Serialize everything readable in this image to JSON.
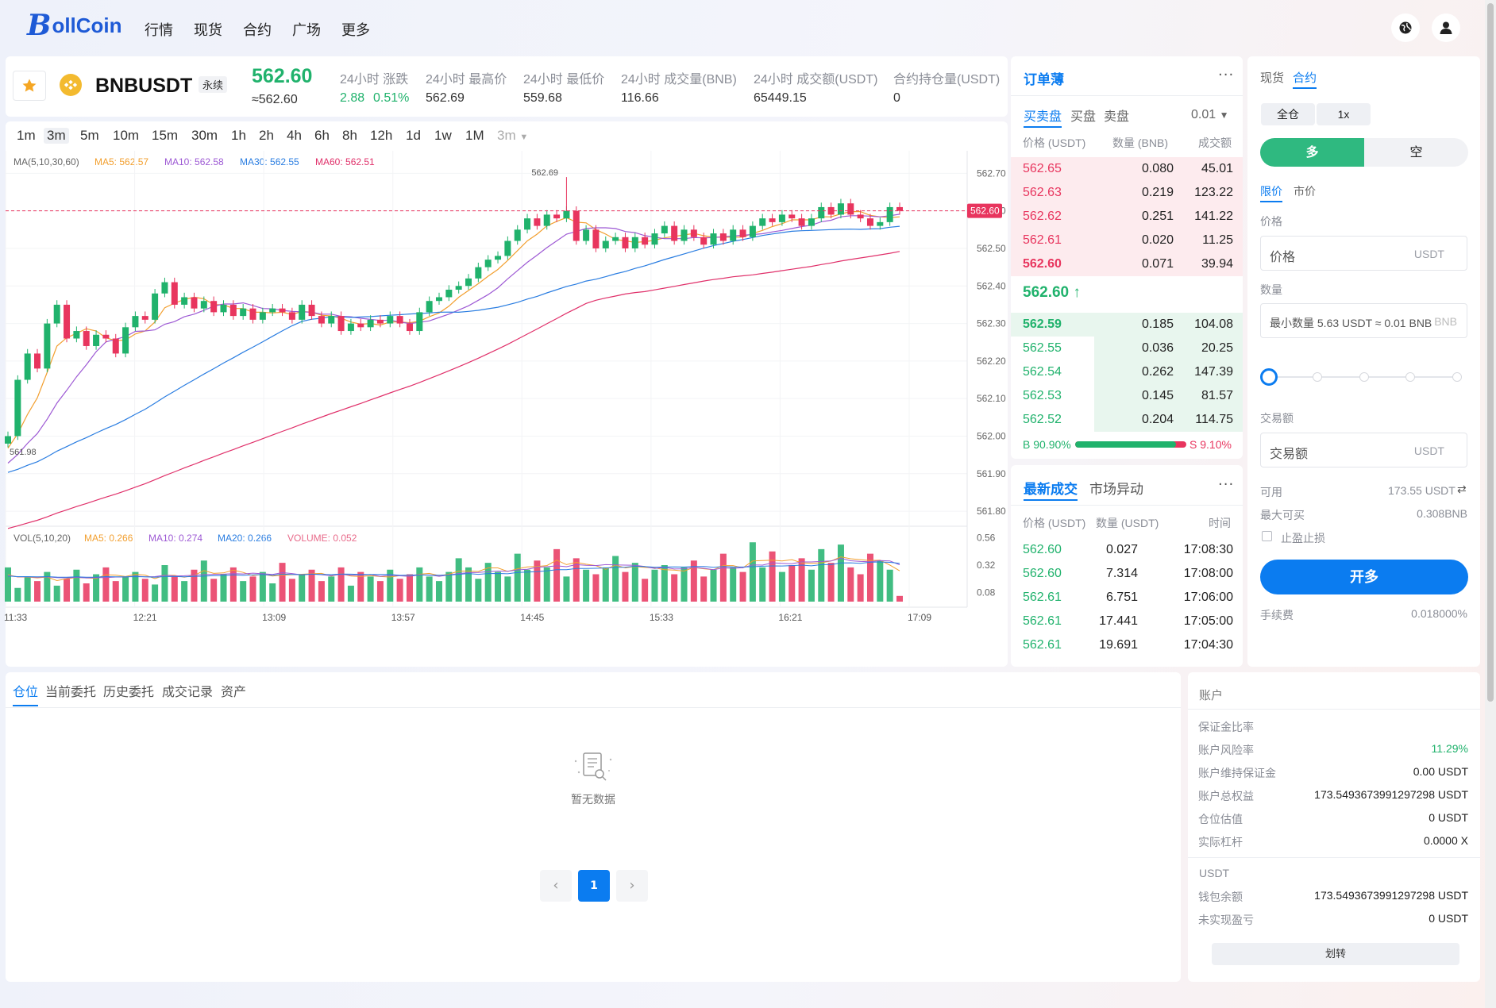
{
  "app": {
    "logo_initial": "B",
    "logo_rest": "ollCoin"
  },
  "nav": {
    "items": [
      "行情",
      "现货",
      "合约",
      "广场",
      "更多"
    ],
    "globe_icon": "globe-icon",
    "user_icon": "user-icon"
  },
  "ticker": {
    "symbol": "BNBUSDT",
    "badge": "永续",
    "last_price": "562.60",
    "last_price_approx": "≈562.60",
    "stats": [
      {
        "label": "24小时 涨跌",
        "value": "2.88",
        "value2": "0.51%"
      },
      {
        "label": "24小时 最高价",
        "value": "562.69"
      },
      {
        "label": "24小时 最低价",
        "value": "559.68"
      },
      {
        "label": "24小时 成交量(BNB)",
        "value": "116.66"
      },
      {
        "label": "24小时 成交额(USDT)",
        "value": "65449.15"
      },
      {
        "label": "合约持仓量(USDT)",
        "value": "0"
      }
    ]
  },
  "chart_toolbar": {
    "intervals": [
      "1m",
      "3m",
      "5m",
      "10m",
      "15m",
      "30m",
      "1h",
      "2h",
      "4h",
      "6h",
      "8h",
      "12h",
      "1d",
      "1w",
      "1M"
    ],
    "active": "3m",
    "dropdown": "3m"
  },
  "chart_data": {
    "type": "candlestick",
    "price_legend": {
      "label": "MA(5,10,30,60)",
      "ma5": "MA5: 562.57",
      "ma10": "MA10: 562.58",
      "ma30": "MA30: 562.55",
      "ma60": "MA60: 562.51"
    },
    "vol_legend": {
      "label": "VOL(5,10,20)",
      "ma5": "MA5: 0.266",
      "ma10": "MA10: 0.274",
      "ma20": "MA20: 0.266",
      "volume": "VOLUME: 0.052"
    },
    "y_ticks": [
      "562.70",
      "562.60",
      "562.50",
      "562.40",
      "562.30",
      "562.20",
      "562.10",
      "562.00",
      "561.90",
      "561.80"
    ],
    "vol_ticks": [
      "0.56",
      "0.32",
      "0.08"
    ],
    "x_ticks": [
      "11:33",
      "12:21",
      "13:09",
      "13:57",
      "14:45",
      "15:33",
      "16:21",
      "17:09"
    ],
    "current_price": "562.60",
    "high_marker": "562.69",
    "low_marker": "561.98",
    "ylim": [
      561.76,
      562.76
    ],
    "current_price_value": 562.6,
    "candles_close": [
      562.0,
      562.15,
      562.22,
      562.18,
      562.3,
      562.35,
      562.26,
      562.28,
      562.24,
      562.27,
      562.26,
      562.22,
      562.29,
      562.32,
      562.31,
      562.38,
      562.41,
      562.35,
      562.37,
      562.34,
      562.36,
      562.33,
      562.35,
      562.32,
      562.34,
      562.31,
      562.33,
      562.34,
      562.33,
      562.31,
      562.35,
      562.32,
      562.3,
      562.32,
      562.28,
      562.3,
      562.29,
      562.31,
      562.3,
      562.32,
      562.3,
      562.28,
      562.33,
      562.36,
      562.37,
      562.39,
      562.4,
      562.42,
      562.45,
      562.47,
      562.48,
      562.52,
      562.55,
      562.58,
      562.56,
      562.59,
      562.58,
      562.6,
      562.52,
      562.55,
      562.5,
      562.52,
      562.53,
      562.5,
      562.53,
      562.51,
      562.54,
      562.56,
      562.52,
      562.55,
      562.53,
      562.51,
      562.54,
      562.52,
      562.55,
      562.53,
      562.56,
      562.58,
      562.57,
      562.59,
      562.58,
      562.56,
      562.58,
      562.61,
      562.59,
      562.62,
      562.59,
      562.58,
      562.56,
      562.57,
      562.61,
      562.6
    ],
    "volumes": [
      0.3,
      0.12,
      0.22,
      0.18,
      0.26,
      0.14,
      0.2,
      0.28,
      0.16,
      0.24,
      0.3,
      0.18,
      0.22,
      0.26,
      0.2,
      0.15,
      0.32,
      0.22,
      0.18,
      0.28,
      0.36,
      0.2,
      0.24,
      0.3,
      0.18,
      0.22,
      0.26,
      0.16,
      0.34,
      0.2,
      0.24,
      0.28,
      0.18,
      0.22,
      0.3,
      0.14,
      0.26,
      0.22,
      0.18,
      0.28,
      0.2,
      0.24,
      0.3,
      0.22,
      0.18,
      0.26,
      0.38,
      0.3,
      0.2,
      0.34,
      0.26,
      0.22,
      0.42,
      0.28,
      0.36,
      0.3,
      0.46,
      0.22,
      0.38,
      0.28,
      0.24,
      0.3,
      0.4,
      0.26,
      0.34,
      0.2,
      0.28,
      0.32,
      0.24,
      0.3,
      0.36,
      0.22,
      0.28,
      0.42,
      0.3,
      0.26,
      0.52,
      0.3,
      0.44,
      0.26,
      0.32,
      0.38,
      0.28,
      0.46,
      0.34,
      0.5,
      0.3,
      0.24,
      0.42,
      0.36,
      0.28,
      0.05
    ]
  },
  "orderbook": {
    "title": "订单薄",
    "tabs": [
      "买卖盘",
      "买盘",
      "卖盘"
    ],
    "precision": "0.01",
    "headers": [
      "价格 (USDT)",
      "数量 (BNB)",
      "成交额"
    ],
    "asks": [
      {
        "price": "562.65",
        "qty": "0.080",
        "total": "45.01",
        "depth": 1.0
      },
      {
        "price": "562.63",
        "qty": "0.219",
        "total": "123.22",
        "depth": 1.0
      },
      {
        "price": "562.62",
        "qty": "0.251",
        "total": "141.22",
        "depth": 1.0
      },
      {
        "price": "562.61",
        "qty": "0.020",
        "total": "11.25",
        "depth": 1.0
      },
      {
        "price": "562.60",
        "qty": "0.071",
        "total": "39.94",
        "depth": 1.0
      }
    ],
    "mid_price": "562.60",
    "mid_arrow": "↑",
    "bids": [
      {
        "price": "562.59",
        "qty": "0.185",
        "total": "104.08",
        "depth": 1.0
      },
      {
        "price": "562.55",
        "qty": "0.036",
        "total": "20.25",
        "depth": 0.64
      },
      {
        "price": "562.54",
        "qty": "0.262",
        "total": "147.39",
        "depth": 0.64
      },
      {
        "price": "562.53",
        "qty": "0.145",
        "total": "81.57",
        "depth": 0.64
      },
      {
        "price": "562.52",
        "qty": "0.204",
        "total": "114.75",
        "depth": 0.64
      }
    ],
    "buy_ratio": "B 90.90%",
    "sell_ratio": "S 9.10%",
    "buy_ratio_value": 0.909
  },
  "trades": {
    "tabs": [
      "最新成交",
      "市场异动"
    ],
    "headers": [
      "价格 (USDT)",
      "数量 (USDT)",
      "时间"
    ],
    "rows": [
      {
        "price": "562.60",
        "qty": "0.027",
        "time": "17:08:30"
      },
      {
        "price": "562.60",
        "qty": "7.314",
        "time": "17:08:00"
      },
      {
        "price": "562.61",
        "qty": "6.751",
        "time": "17:06:00"
      },
      {
        "price": "562.61",
        "qty": "17.441",
        "time": "17:05:00"
      },
      {
        "price": "562.61",
        "qty": "19.691",
        "time": "17:04:30"
      }
    ]
  },
  "trade_panel": {
    "market_tabs": [
      "现货",
      "合约"
    ],
    "margin_mode": "全仓",
    "leverage": "1x",
    "long": "多",
    "short": "空",
    "order_types": [
      "限价",
      "市价"
    ],
    "price_label": "价格",
    "price_placeholder": "价格",
    "price_unit": "USDT",
    "qty_label": "数量",
    "qty_placeholder": "最小数量 5.63 USDT ≈ 0.01 BNB",
    "qty_unit": "BNB",
    "amount_label": "交易额",
    "amount_placeholder": "交易额",
    "amount_unit": "USDT",
    "available_label": "可用",
    "available_value": "173.55 USDT",
    "max_label": "最大可买",
    "max_value": "0.308BNB",
    "tpsl_label": "止盈止损",
    "submit": "开多",
    "fee_label": "手续费",
    "fee_value": "0.018000%",
    "slider_value": 0
  },
  "positions": {
    "tabs": [
      "仓位",
      "当前委托",
      "历史委托",
      "成交记录",
      "资产"
    ],
    "empty_text": "暂无数据",
    "page": "1"
  },
  "account": {
    "title": "账户",
    "rows": [
      {
        "k": "保证金比率",
        "v": ""
      },
      {
        "k": "账户风险率",
        "v": "11.29%"
      },
      {
        "k": "账户维持保证金",
        "v": "0.00 USDT"
      },
      {
        "k": "账户总权益",
        "v": "173.5493673991297298 USDT"
      },
      {
        "k": "仓位估值",
        "v": "0 USDT"
      },
      {
        "k": "实际杠杆",
        "v": "0.0000 X"
      }
    ],
    "section2": "USDT",
    "rows2": [
      {
        "k": "钱包余额",
        "v": "173.5493673991297298 USDT"
      },
      {
        "k": "未实现盈亏",
        "v": "0 USDT"
      }
    ],
    "transfer": "划转"
  },
  "colors": {
    "up": "#20b26c",
    "down": "#e8355e",
    "accent": "#0b7cf0",
    "ma5": "#f29f2f",
    "ma10": "#9d59d4",
    "ma30": "#2a7de1",
    "ma60": "#e0306a"
  }
}
